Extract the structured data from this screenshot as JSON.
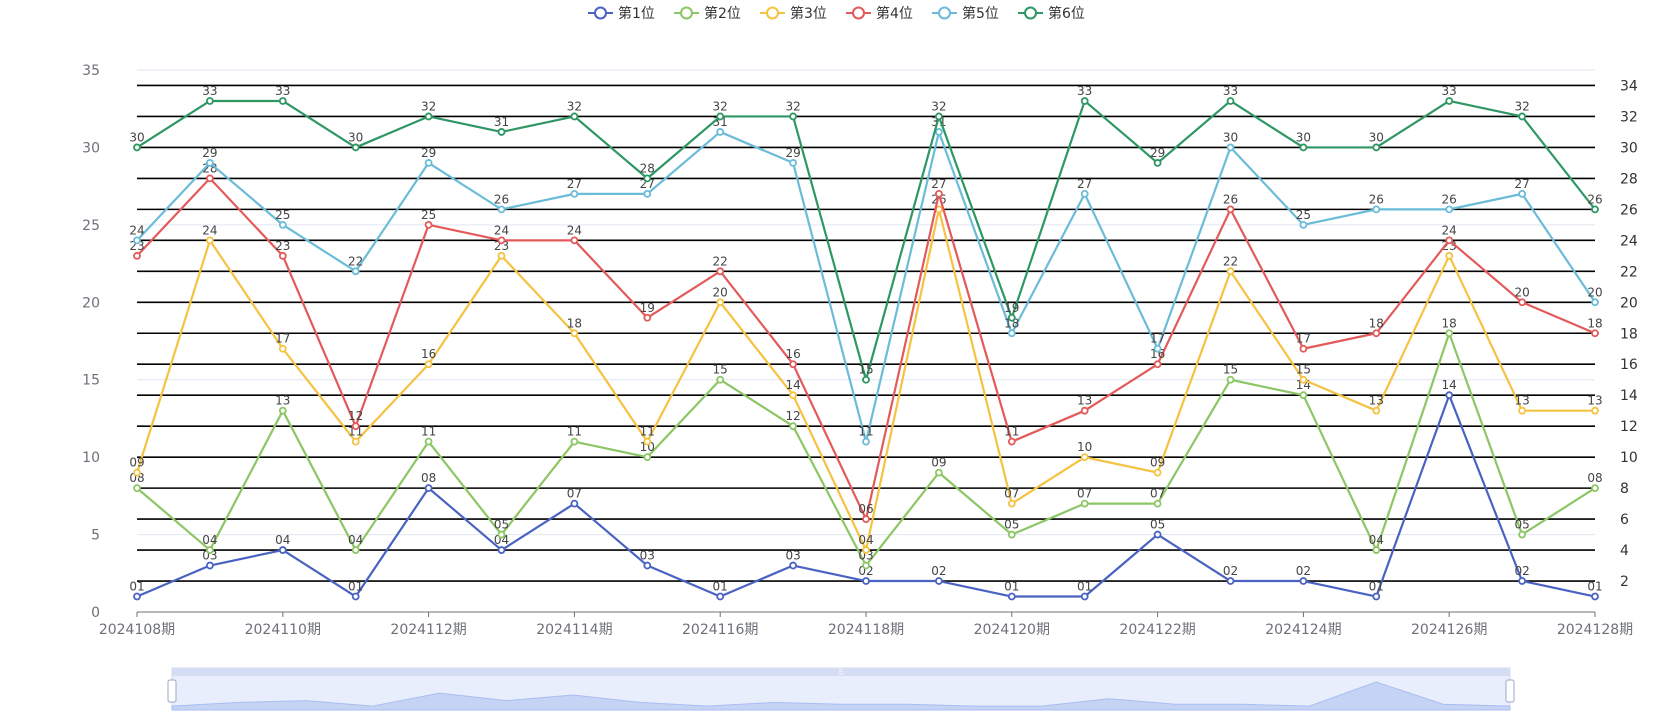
{
  "chart_data": {
    "type": "line",
    "categories": [
      "2024108期",
      "2024109期",
      "2024110期",
      "2024111期",
      "2024112期",
      "2024113期",
      "2024114期",
      "2024115期",
      "2024116期",
      "2024117期",
      "2024118期",
      "2024119期",
      "2024120期",
      "2024121期",
      "2024122期",
      "2024123期",
      "2024124期",
      "2024125期",
      "2024126期",
      "2024127期",
      "2024128期"
    ],
    "x_tick_labels": [
      "2024108期",
      "2024110期",
      "2024112期",
      "2024114期",
      "2024116期",
      "2024118期",
      "2024120期",
      "2024122期",
      "2024124期",
      "2024126期",
      "2024128期"
    ],
    "y_ticks": [
      "0",
      "5",
      "10",
      "15",
      "20",
      "25",
      "30",
      "35"
    ],
    "right_ticks": [
      "2",
      "4",
      "6",
      "8",
      "10",
      "12",
      "14",
      "16",
      "18",
      "20",
      "22",
      "24",
      "26",
      "28",
      "30",
      "32",
      "34"
    ],
    "ylim": [
      0,
      35
    ],
    "series": [
      {
        "name": "第1位",
        "color": "#4a63c2",
        "values": [
          1,
          3,
          4,
          1,
          8,
          4,
          7,
          3,
          1,
          3,
          2,
          2,
          1,
          1,
          5,
          2,
          2,
          1,
          14,
          2,
          1
        ],
        "labels": [
          "01",
          "03",
          "04",
          "01",
          "08",
          "04",
          "07",
          "03",
          "01",
          "03",
          "02",
          "02",
          "01",
          "01",
          "05",
          "02",
          "02",
          "01",
          "14",
          "02",
          "01"
        ]
      },
      {
        "name": "第2位",
        "color": "#8cc665",
        "values": [
          8,
          4,
          13,
          4,
          11,
          5,
          11,
          10,
          15,
          12,
          3,
          9,
          5,
          7,
          7,
          15,
          14,
          4,
          18,
          5,
          8
        ],
        "labels": [
          "08",
          "04",
          "13",
          "04",
          "11",
          "05",
          "11",
          "10",
          "15",
          "12",
          "03",
          "09",
          "05",
          "07",
          "07",
          "15",
          "14",
          "04",
          "18",
          "05",
          "08"
        ]
      },
      {
        "name": "第3位",
        "color": "#f5c242",
        "values": [
          9,
          24,
          17,
          11,
          16,
          23,
          18,
          11,
          20,
          14,
          4,
          26,
          7,
          10,
          9,
          22,
          15,
          13,
          23,
          13,
          13
        ],
        "labels": [
          "09",
          "24",
          "17",
          "11",
          "16",
          "23",
          "18",
          "11",
          "20",
          "14",
          "04",
          "26",
          "07",
          "10",
          "09",
          "22",
          "15",
          "13",
          "23",
          "13",
          "13"
        ]
      },
      {
        "name": "第4位",
        "color": "#e35a5a",
        "values": [
          23,
          28,
          23,
          12,
          25,
          24,
          24,
          19,
          22,
          16,
          6,
          27,
          11,
          13,
          16,
          26,
          17,
          18,
          24,
          20,
          18
        ],
        "labels": [
          "23",
          "28",
          "23",
          "12",
          "25",
          "24",
          "24",
          "19",
          "22",
          "16",
          "06",
          "27",
          "11",
          "13",
          "16",
          "26",
          "17",
          "18",
          "24",
          "20",
          "18"
        ]
      },
      {
        "name": "第5位",
        "color": "#6bbcd8",
        "values": [
          24,
          29,
          25,
          22,
          29,
          26,
          27,
          27,
          31,
          29,
          11,
          31,
          18,
          27,
          17,
          30,
          25,
          26,
          26,
          27,
          20
        ],
        "labels": [
          "24",
          "29",
          "25",
          "22",
          "29",
          "26",
          "27",
          "27",
          "31",
          "29",
          "11",
          "31",
          "18",
          "27",
          "17",
          "30",
          "25",
          "26",
          "26",
          "27",
          "20"
        ]
      },
      {
        "name": "第6位",
        "color": "#2e9764",
        "values": [
          30,
          33,
          33,
          30,
          32,
          31,
          32,
          28,
          32,
          32,
          15,
          32,
          19,
          33,
          29,
          33,
          30,
          30,
          33,
          32,
          26
        ],
        "labels": [
          "30",
          "33",
          "33",
          "30",
          "32",
          "31",
          "32",
          "28",
          "32",
          "32",
          "15",
          "32",
          "19",
          "33",
          "29",
          "33",
          "30",
          "30",
          "33",
          "32",
          "26"
        ]
      }
    ]
  }
}
